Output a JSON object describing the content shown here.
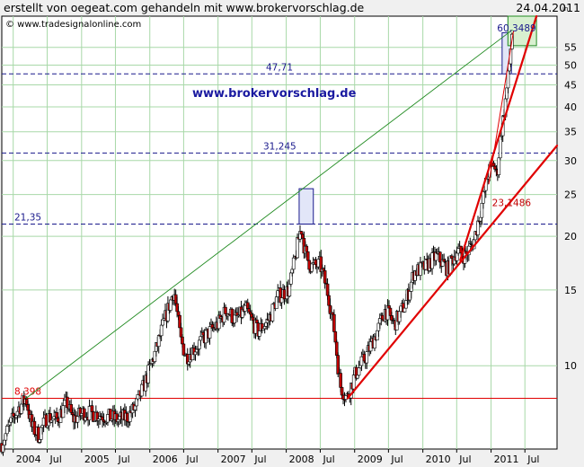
{
  "header": {
    "title": "erstellt von oegeat.com gehandeln mit www.brokervorschlag.de",
    "date": "24.04.2011"
  },
  "chart_data": {
    "type": "candlestick",
    "watermark": "© www.tradesignalonline.com",
    "brand_text": "www.brokervorschlag.de",
    "y_unit": "in",
    "y_scale": "log",
    "ylim": [
      6.4,
      65
    ],
    "xlim": [
      "2003-11-01",
      "2011-12-20"
    ],
    "grid": true,
    "y_ticks": [
      10,
      15,
      20,
      25,
      30,
      35,
      40,
      45,
      50,
      55
    ],
    "x_ticks": [
      {
        "label": "2004",
        "date": "2004-01-01"
      },
      {
        "label": "Jul",
        "date": "2004-07-01"
      },
      {
        "label": "2005",
        "date": "2005-01-01"
      },
      {
        "label": "Jul",
        "date": "2005-07-01"
      },
      {
        "label": "2006",
        "date": "2006-01-01"
      },
      {
        "label": "Jul",
        "date": "2006-07-01"
      },
      {
        "label": "2007",
        "date": "2007-01-01"
      },
      {
        "label": "Jul",
        "date": "2007-07-01"
      },
      {
        "label": "2008",
        "date": "2008-01-01"
      },
      {
        "label": "Jul",
        "date": "2008-07-01"
      },
      {
        "label": "2009",
        "date": "2009-01-01"
      },
      {
        "label": "Jul",
        "date": "2009-07-01"
      },
      {
        "label": "2010",
        "date": "2010-01-01"
      },
      {
        "label": "Jul",
        "date": "2010-07-01"
      },
      {
        "label": "2011",
        "date": "2011-01-01"
      },
      {
        "label": "Jul",
        "date": "2011-07-01"
      }
    ],
    "price_path": [
      [
        "2003-11-01",
        6.6
      ],
      [
        "2003-12-15",
        7.3
      ],
      [
        "2004-02-01",
        8.0
      ],
      [
        "2004-03-10",
        8.398
      ],
      [
        "2004-04-10",
        7.2
      ],
      [
        "2004-05-15",
        6.9
      ],
      [
        "2004-07-01",
        7.6
      ],
      [
        "2004-08-20",
        7.5
      ],
      [
        "2004-10-15",
        8.2
      ],
      [
        "2004-11-15",
        7.5
      ],
      [
        "2005-01-15",
        7.8
      ],
      [
        "2005-04-01",
        7.7
      ],
      [
        "2005-07-15",
        7.5
      ],
      [
        "2005-09-01",
        7.6
      ],
      [
        "2005-10-15",
        8.0
      ],
      [
        "2005-12-01",
        9.0
      ],
      [
        "2006-02-01",
        10.8
      ],
      [
        "2006-03-15",
        12.5
      ],
      [
        "2006-05-10",
        15.0
      ],
      [
        "2006-06-15",
        11.5
      ],
      [
        "2006-07-15",
        10.5
      ],
      [
        "2006-09-01",
        11.0
      ],
      [
        "2006-11-01",
        11.8
      ],
      [
        "2007-01-01",
        12.5
      ],
      [
        "2007-02-15",
        13.5
      ],
      [
        "2007-04-01",
        12.8
      ],
      [
        "2007-06-01",
        13.5
      ],
      [
        "2007-08-01",
        12.0
      ],
      [
        "2007-10-01",
        12.8
      ],
      [
        "2007-11-15",
        14.5
      ],
      [
        "2008-01-15",
        15.0
      ],
      [
        "2008-03-20",
        21.0
      ],
      [
        "2008-04-15",
        18.0
      ],
      [
        "2008-05-15",
        17.0
      ],
      [
        "2008-07-01",
        17.2
      ],
      [
        "2008-08-15",
        14.5
      ],
      [
        "2008-09-15",
        12.0
      ],
      [
        "2008-10-15",
        9.0
      ],
      [
        "2008-11-20",
        8.4
      ],
      [
        "2009-01-01",
        9.5
      ],
      [
        "2009-03-01",
        10.5
      ],
      [
        "2009-05-01",
        12.0
      ],
      [
        "2009-06-15",
        13.5
      ],
      [
        "2009-08-01",
        12.5
      ],
      [
        "2009-10-01",
        14.0
      ],
      [
        "2009-11-15",
        16.5
      ],
      [
        "2010-01-15",
        17.0
      ],
      [
        "2010-03-15",
        18.0
      ],
      [
        "2010-05-15",
        16.8
      ],
      [
        "2010-07-01",
        18.5
      ],
      [
        "2010-08-15",
        18.0
      ],
      [
        "2010-10-01",
        19.5
      ],
      [
        "2010-11-15",
        24.0
      ],
      [
        "2010-12-15",
        28.0
      ],
      [
        "2011-01-15",
        29.5
      ],
      [
        "2011-02-01",
        27.5
      ],
      [
        "2011-02-20",
        34.0
      ],
      [
        "2011-03-15",
        40.0
      ],
      [
        "2011-04-05",
        48.0
      ],
      [
        "2011-04-24",
        60.3489
      ]
    ],
    "horizontal_lines": [
      {
        "value": 47.71,
        "label": "47,71",
        "style": "dashed",
        "color": "#1a1a8c"
      },
      {
        "value": 31.245,
        "label": "31,245",
        "style": "dashed",
        "color": "#1a1a8c"
      },
      {
        "value": 21.35,
        "label": "21,35",
        "style": "dashed",
        "color": "#1a1a8c"
      },
      {
        "value": 8.398,
        "label": "8,398",
        "style": "solid",
        "color": "#e00000"
      }
    ],
    "trend_lines": [
      {
        "from": [
          "2004-03-10",
          8.398
        ],
        "to": [
          "2011-04-24",
          60.3489
        ],
        "color": "#1f8a1f",
        "width": 0.9
      },
      {
        "from": [
          "2008-11-25",
          8.4
        ],
        "to": [
          "2011-12-20",
          32.5
        ],
        "color": "#e00000",
        "width": 2.2
      },
      {
        "from": [
          "2010-07-20",
          17.6
        ],
        "to": [
          "2011-09-01",
          65
        ],
        "color": "#e00000",
        "width": 2.2
      },
      {
        "from": [
          "2010-12-20",
          26.5
        ],
        "to": [
          "2011-05-01",
          60
        ],
        "color": "#e00000",
        "width": 1
      }
    ],
    "point_labels": [
      {
        "text": "23,1486",
        "date": "2011-03-05",
        "value": 23.1486,
        "color": "#c00000"
      },
      {
        "text": "60,3489",
        "date": "2011-04-01",
        "value": 59.0,
        "color": "#1a1a8c"
      }
    ],
    "boxes": [
      {
        "x0": "2008-03-10",
        "x1": "2008-05-25",
        "y0": 21.35,
        "y1": 25.8,
        "fill": "#e2e6f8",
        "stroke": "#1a1a8c"
      },
      {
        "x0": "2011-03-01",
        "x1": "2011-04-20",
        "y0": 47.71,
        "y1": 59.5,
        "fill": "#e2e6f8",
        "stroke": "#1a1a8c"
      },
      {
        "x0": "2011-04-01",
        "x1": "2011-09-01",
        "y0": 55.5,
        "y1": 65,
        "fill": "#d8f0d0",
        "stroke": "#1f8a1f"
      }
    ],
    "colors": {
      "background": "#ffffff",
      "grid": "#a8d8a8",
      "candle_up": "#ffffff",
      "candle_down": "#c00000",
      "wick": "#000000",
      "brand_text": "#1a1aa0",
      "outer": "#f0f0f0"
    }
  }
}
